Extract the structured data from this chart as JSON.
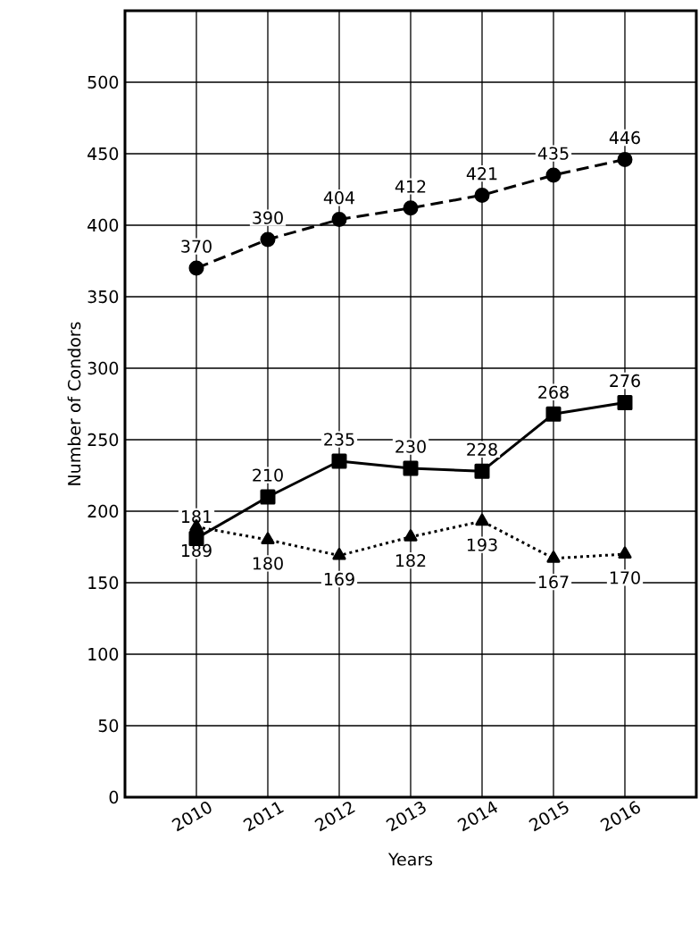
{
  "chart_data": {
    "type": "line",
    "xlabel": "Years",
    "ylabel": "Number of Condors",
    "x": [
      2010,
      2011,
      2012,
      2013,
      2014,
      2015,
      2016
    ],
    "xlim": [
      2009,
      2017
    ],
    "xticks": [
      2010,
      2011,
      2012,
      2013,
      2014,
      2015,
      2016
    ],
    "ylim": [
      0,
      550
    ],
    "yticks": [
      0,
      50,
      100,
      150,
      200,
      250,
      300,
      350,
      400,
      450,
      500
    ],
    "grid": true,
    "data_labels": true,
    "series": [
      {
        "color": "#000000",
        "marker": "circle",
        "line_style": "dashed",
        "values": [
          370,
          390,
          404,
          412,
          421,
          435,
          446
        ]
      },
      {
        "color": "#000000",
        "marker": "square",
        "line_style": "solid",
        "values": [
          181,
          210,
          235,
          230,
          228,
          268,
          276
        ]
      },
      {
        "color": "#000000",
        "marker": "triangle",
        "line_style": "dotted",
        "values": [
          189,
          180,
          169,
          182,
          193,
          167,
          170
        ]
      }
    ]
  }
}
